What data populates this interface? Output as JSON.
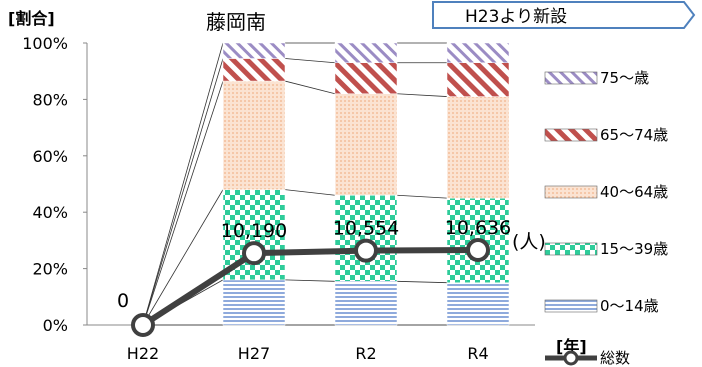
{
  "chart_data": {
    "type": "bar",
    "title": "藤岡南",
    "ylabel": "[割合]",
    "xlabel": "[年]",
    "note": "H23より新設",
    "categories": [
      "H22",
      "H27",
      "R2",
      "R4"
    ],
    "ylim": [
      0,
      100
    ],
    "yticks": [
      "0%",
      "20%",
      "40%",
      "60%",
      "80%",
      "100%"
    ],
    "stack_series": [
      {
        "name": "0～14歳",
        "values": [
          0,
          16,
          15.5,
          15
        ],
        "color": "#8faadc",
        "pattern": "hstripe"
      },
      {
        "name": "15～39歳",
        "values": [
          0,
          32,
          30.5,
          30
        ],
        "color": "#2ecc9a",
        "pattern": "checker"
      },
      {
        "name": "40～64歳",
        "values": [
          0,
          38.5,
          36,
          36
        ],
        "color": "#f8cbad",
        "pattern": "dots"
      },
      {
        "name": "65～74歳",
        "values": [
          0,
          8,
          11,
          12
        ],
        "color": "#c0504d",
        "pattern": "diag"
      },
      {
        "name": "75～歳",
        "values": [
          0,
          5.5,
          7,
          7
        ],
        "color": "#9b8cc4",
        "pattern": "diag2"
      }
    ],
    "line_series": {
      "name": "総数",
      "values": [
        0,
        10190,
        10554,
        10636
      ],
      "labels": [
        "0",
        "10,190",
        "10,554",
        "10,636"
      ],
      "unit": "(人)",
      "secondary_max": 40000
    },
    "legend_position": "right",
    "grid": false
  }
}
